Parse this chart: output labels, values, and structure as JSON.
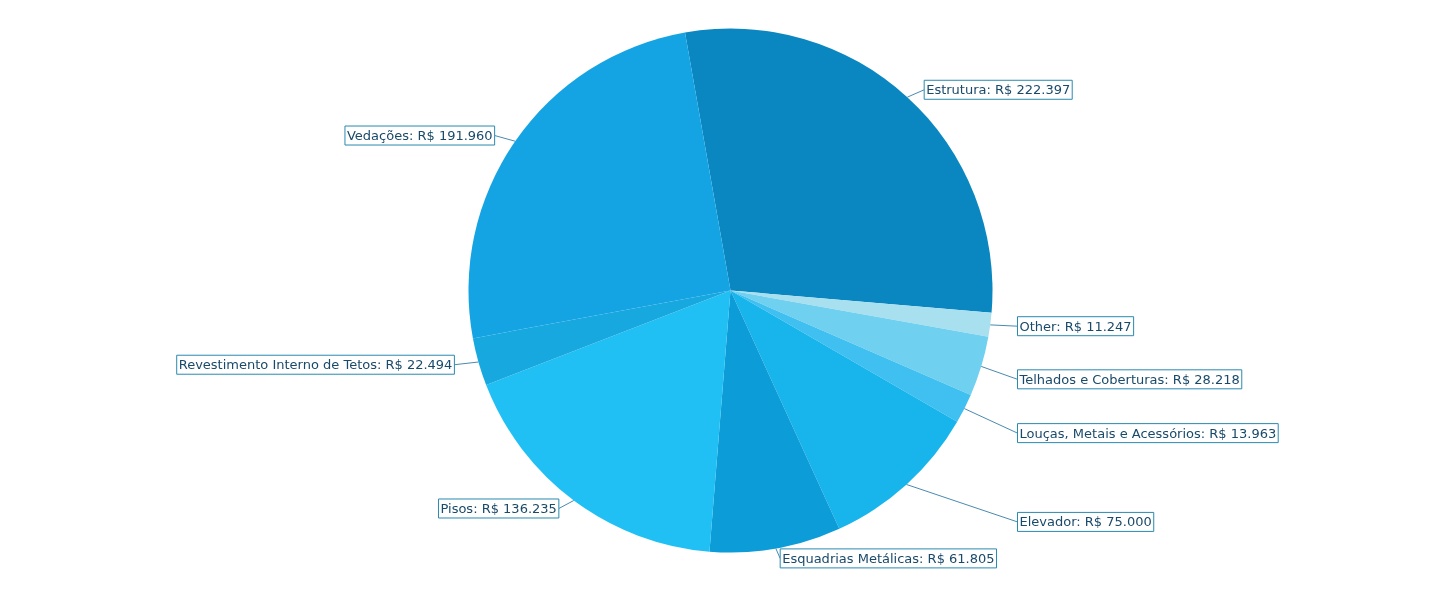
{
  "chart_data": {
    "type": "pie",
    "categories": [
      "Estrutura",
      "Other",
      "Telhados e Coberturas",
      "Louças, Metais e Acessórios",
      "Elevador",
      "Esquadrias Metálicas",
      "Pisos",
      "Revestimento Interno de Tetos",
      "Vedações"
    ],
    "values": [
      222397,
      11247,
      28218,
      13963,
      75000,
      61805,
      136235,
      22494,
      191960
    ],
    "value_labels": [
      "R$ 222.397",
      "R$ 11.247",
      "R$ 28.218",
      "R$ 13.963",
      "R$ 75.000",
      "R$ 61.805",
      "R$ 136.235",
      "R$ 22.494",
      "R$ 191.960"
    ],
    "colors": [
      "#0a87c0",
      "#a8e0f0",
      "#70d0f0",
      "#40c0f0",
      "#18b4ec",
      "#0c9cd8",
      "#20c0f4",
      "#18a8e0",
      "#14a4e4"
    ]
  }
}
